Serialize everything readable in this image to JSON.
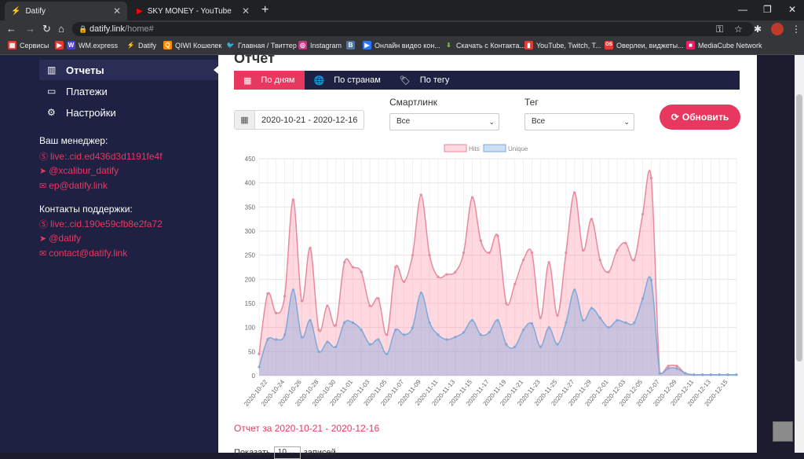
{
  "browser": {
    "tabs": [
      {
        "title": "Datify",
        "active": true
      },
      {
        "title": "SKY MONEY - YouTube",
        "active": false
      }
    ],
    "url_host": "datify.link",
    "url_path": "/home#",
    "bookmarks": [
      {
        "label": "Сервисы",
        "icon": "apps-grid-icon",
        "color": "#e8eaed"
      },
      {
        "label": "WM.express",
        "icon": "wm-icon",
        "color": "#4b3fd1"
      },
      {
        "label": "Datify",
        "icon": "datify-bolt-icon",
        "color": "#f5b400"
      },
      {
        "label": "QIWI Кошелек",
        "icon": "qiwi-icon",
        "color": "#ff8c00"
      },
      {
        "label": "Главная / Твиттер",
        "icon": "twitter-icon",
        "color": "#1da1f2"
      },
      {
        "label": "Instagram",
        "icon": "instagram-icon",
        "color": "#c13584"
      },
      {
        "label": "",
        "icon": "vk-icon",
        "color": "#4a76a8"
      },
      {
        "label": "Онлайн видео кон...",
        "icon": "video-converter-icon",
        "color": "#2979ff"
      },
      {
        "label": "Скачать с Контакта...",
        "icon": "download-icon",
        "color": "#7cb342"
      },
      {
        "label": "YouTube, Twitch, T...",
        "icon": "media-icon",
        "color": "#e53935"
      },
      {
        "label": "Оверлеи, виджеты...",
        "icon": "overlay-icon",
        "color": "#e53935"
      },
      {
        "label": "MediaCube Network",
        "icon": "mediacube-icon",
        "color": "#e91e63"
      }
    ]
  },
  "sidebar": {
    "menu": [
      {
        "label": "Отчеты",
        "icon": "bar-chart-icon",
        "active": true
      },
      {
        "label": "Платежи",
        "icon": "money-icon",
        "active": false
      },
      {
        "label": "Настройки",
        "icon": "gear-icon",
        "active": false
      }
    ],
    "manager_heading": "Ваш менеджер:",
    "manager_links": [
      {
        "text": "live:.cid.ed436d3d1191fe4f",
        "icon": "skype-icon"
      },
      {
        "text": "@xcalibur_datify",
        "icon": "telegram-icon"
      },
      {
        "text": "ep@datify.link",
        "icon": "mail-icon"
      }
    ],
    "support_heading": "Контакты поддержки:",
    "support_links": [
      {
        "text": "live:.cid.190e59cfb8e2fa72",
        "icon": "skype-icon"
      },
      {
        "text": "@datify",
        "icon": "telegram-icon"
      },
      {
        "text": "contact@datify.link",
        "icon": "mail-icon"
      }
    ]
  },
  "main": {
    "title": "Отчет",
    "tabs": [
      {
        "label": "По дням",
        "icon": "calendar-icon",
        "active": true
      },
      {
        "label": "По странам",
        "icon": "globe-icon",
        "active": false
      },
      {
        "label": "По тегу",
        "icon": "tag-icon",
        "active": false
      }
    ],
    "date_range": "2020-10-21 - 2020-12-16",
    "smartlink_label": "Смартлинк",
    "smartlink_value": "Все",
    "tag_label": "Тег",
    "tag_value": "Все",
    "refresh_label": "Обновить",
    "report_heading": "Отчет за 2020-10-21 - 2020-12-16",
    "show_label": "Показать",
    "show_value": "10",
    "show_suffix": "записей"
  },
  "colors": {
    "accent": "#e8385f",
    "sidebar": "#1e2142",
    "hits_fill": "rgba(255,99,132,0.25)",
    "hits_line": "#e88a9e",
    "unique_fill": "rgba(110,160,220,0.35)",
    "unique_line": "#7fa9d9"
  },
  "chart_data": {
    "type": "area",
    "legend": [
      "Hits",
      "Unique"
    ],
    "legend_position": "top",
    "ylim": [
      0,
      450
    ],
    "yticks": [
      0,
      50,
      100,
      150,
      200,
      250,
      300,
      350,
      400,
      450
    ],
    "grid": true,
    "x": [
      "2020-10-21",
      "2020-10-22",
      "2020-10-23",
      "2020-10-24",
      "2020-10-25",
      "2020-10-26",
      "2020-10-27",
      "2020-10-28",
      "2020-10-29",
      "2020-10-30",
      "2020-10-31",
      "2020-11-01",
      "2020-11-02",
      "2020-11-03",
      "2020-11-04",
      "2020-11-05",
      "2020-11-06",
      "2020-11-07",
      "2020-11-08",
      "2020-11-09",
      "2020-11-10",
      "2020-11-11",
      "2020-11-12",
      "2020-11-13",
      "2020-11-14",
      "2020-11-15",
      "2020-11-16",
      "2020-11-17",
      "2020-11-18",
      "2020-11-19",
      "2020-11-20",
      "2020-11-21",
      "2020-11-22",
      "2020-11-23",
      "2020-11-24",
      "2020-11-25",
      "2020-11-26",
      "2020-11-27",
      "2020-11-28",
      "2020-11-29",
      "2020-11-30",
      "2020-12-01",
      "2020-12-02",
      "2020-12-03",
      "2020-12-04",
      "2020-12-05",
      "2020-12-06",
      "2020-12-07",
      "2020-12-08",
      "2020-12-09",
      "2020-12-10",
      "2020-12-11",
      "2020-12-12",
      "2020-12-13",
      "2020-12-14",
      "2020-12-15",
      "2020-12-16"
    ],
    "xtick_labels": [
      "2020-10-22",
      "2020-10-24",
      "2020-10-26",
      "2020-10-28",
      "2020-10-30",
      "2020-11-01",
      "2020-11-03",
      "2020-11-05",
      "2020-11-07",
      "2020-11-09",
      "2020-11-11",
      "2020-11-13",
      "2020-11-15",
      "2020-11-17",
      "2020-11-19",
      "2020-11-21",
      "2020-11-23",
      "2020-11-25",
      "2020-11-27",
      "2020-11-29",
      "2020-12-01",
      "2020-12-03",
      "2020-12-05",
      "2020-12-07",
      "2020-12-09",
      "2020-12-11",
      "2020-12-13",
      "2020-12-15"
    ],
    "series": [
      {
        "name": "Hits",
        "values": [
          45,
          170,
          130,
          165,
          365,
          155,
          265,
          95,
          145,
          105,
          235,
          225,
          215,
          145,
          160,
          85,
          225,
          195,
          250,
          375,
          250,
          205,
          210,
          215,
          255,
          370,
          280,
          255,
          290,
          150,
          190,
          240,
          255,
          120,
          235,
          125,
          255,
          380,
          260,
          325,
          240,
          215,
          260,
          275,
          240,
          335,
          410,
          5,
          20,
          20,
          5,
          2,
          2,
          2,
          2,
          2,
          2
        ]
      },
      {
        "name": "Unique",
        "values": [
          18,
          75,
          75,
          85,
          178,
          80,
          115,
          50,
          70,
          60,
          110,
          110,
          95,
          65,
          75,
          45,
          95,
          85,
          100,
          172,
          110,
          85,
          75,
          80,
          90,
          115,
          85,
          90,
          115,
          65,
          60,
          95,
          108,
          60,
          100,
          65,
          110,
          178,
          115,
          140,
          120,
          100,
          115,
          110,
          110,
          160,
          198,
          5,
          15,
          15,
          5,
          2,
          2,
          2,
          2,
          2,
          2
        ]
      }
    ]
  }
}
